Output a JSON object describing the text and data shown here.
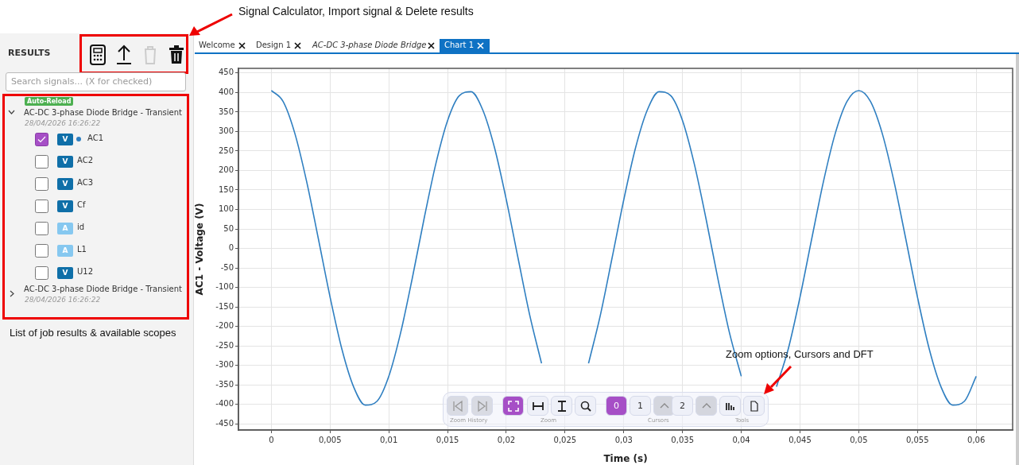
{
  "chart_data": {
    "type": "line",
    "xlabel": "Time (s)",
    "ylabel": "AC1 - Voltage (V)",
    "x": [
      0,
      0.001,
      0.002,
      0.003,
      0.004,
      0.005,
      0.006,
      0.007,
      0.008,
      0.009,
      0.01,
      0.011,
      0.012,
      0.013,
      0.014,
      0.015,
      0.016,
      0.017,
      0.018,
      0.019,
      0.02,
      0.021,
      0.022,
      0.023,
      0.024,
      0.025,
      0.026,
      0.027,
      0.028,
      0.029,
      0.03,
      0.031,
      0.032,
      0.033,
      0.034,
      0.035,
      0.036,
      0.037,
      0.038,
      0.039,
      0.04,
      0.041,
      0.042,
      0.043,
      0.044,
      0.045,
      0.046,
      0.047,
      0.048,
      0.049,
      0.05,
      0.051,
      0.052,
      0.053,
      0.054,
      0.055,
      0.056,
      0.057,
      0.058,
      0.059,
      0.06
    ],
    "series": [
      {
        "color": "#2f7fc1",
        "values": [
          405,
          377,
          295,
          172,
          25,
          -125,
          -258,
          -355,
          -402,
          -392,
          -328,
          -217,
          -76,
          76,
          217,
          328,
          392,
          402,
          355,
          258,
          125,
          -25,
          -172,
          -295,
          null,
          null,
          null,
          -295,
          -172,
          -25,
          125,
          258,
          355,
          402,
          392,
          328,
          217,
          76,
          -76,
          -217,
          -328,
          null,
          null,
          -355,
          -258,
          -125,
          25,
          172,
          295,
          377,
          405,
          377,
          295,
          172,
          25,
          -125,
          -258,
          -355,
          -402,
          -392,
          -328
        ]
      }
    ],
    "xlim": [
      -0.0028,
      0.0631
    ],
    "ylim": [
      -466,
      462
    ],
    "xticks": [
      {
        "value": 0,
        "label": "0"
      },
      {
        "value": 0.005,
        "label": "0,005"
      },
      {
        "value": 0.01,
        "label": "0,01"
      },
      {
        "value": 0.015,
        "label": "0,015"
      },
      {
        "value": 0.02,
        "label": "0,02"
      },
      {
        "value": 0.025,
        "label": "0,025"
      },
      {
        "value": 0.03,
        "label": "0,03"
      },
      {
        "value": 0.035,
        "label": "0,035"
      },
      {
        "value": 0.04,
        "label": "0,04"
      },
      {
        "value": 0.045,
        "label": "0,045"
      },
      {
        "value": 0.05,
        "label": "0,05"
      },
      {
        "value": 0.055,
        "label": "0,055"
      },
      {
        "value": 0.06,
        "label": "0,06"
      }
    ],
    "yticks": [
      -450,
      -400,
      -350,
      -300,
      -250,
      -200,
      -150,
      -100,
      -50,
      0,
      50,
      100,
      150,
      200,
      250,
      300,
      350,
      400,
      450
    ],
    "grid": true,
    "legend": false,
    "marker": "none",
    "line_style": "solid",
    "annotations": [
      "Signal Calculator, Import signal & Delete results",
      "List of job results & available scopes",
      "Zoom options, Cursors and DFT",
      "RESULTS",
      "Search signals... (X for checked)",
      "Auto-Reload",
      "AC-DC 3-phase Diode Bridge - Transient",
      "28/04/2026 16:26:22",
      "V",
      "AC1",
      "V",
      "AC2",
      "V",
      "AC3",
      "V",
      "Cf",
      "A",
      "id",
      "A",
      "L1",
      "V",
      "U12",
      "AC-DC 3-phase Diode Bridge - Transient",
      "28/04/2026 16:26:22",
      "Welcome",
      "Design 1",
      "AC-DC 3-phase Diode Bridge",
      "Chart 1",
      "0",
      "1",
      "2",
      "Zoom History",
      "Zoom",
      "Cursors",
      "Tools"
    ]
  }
}
